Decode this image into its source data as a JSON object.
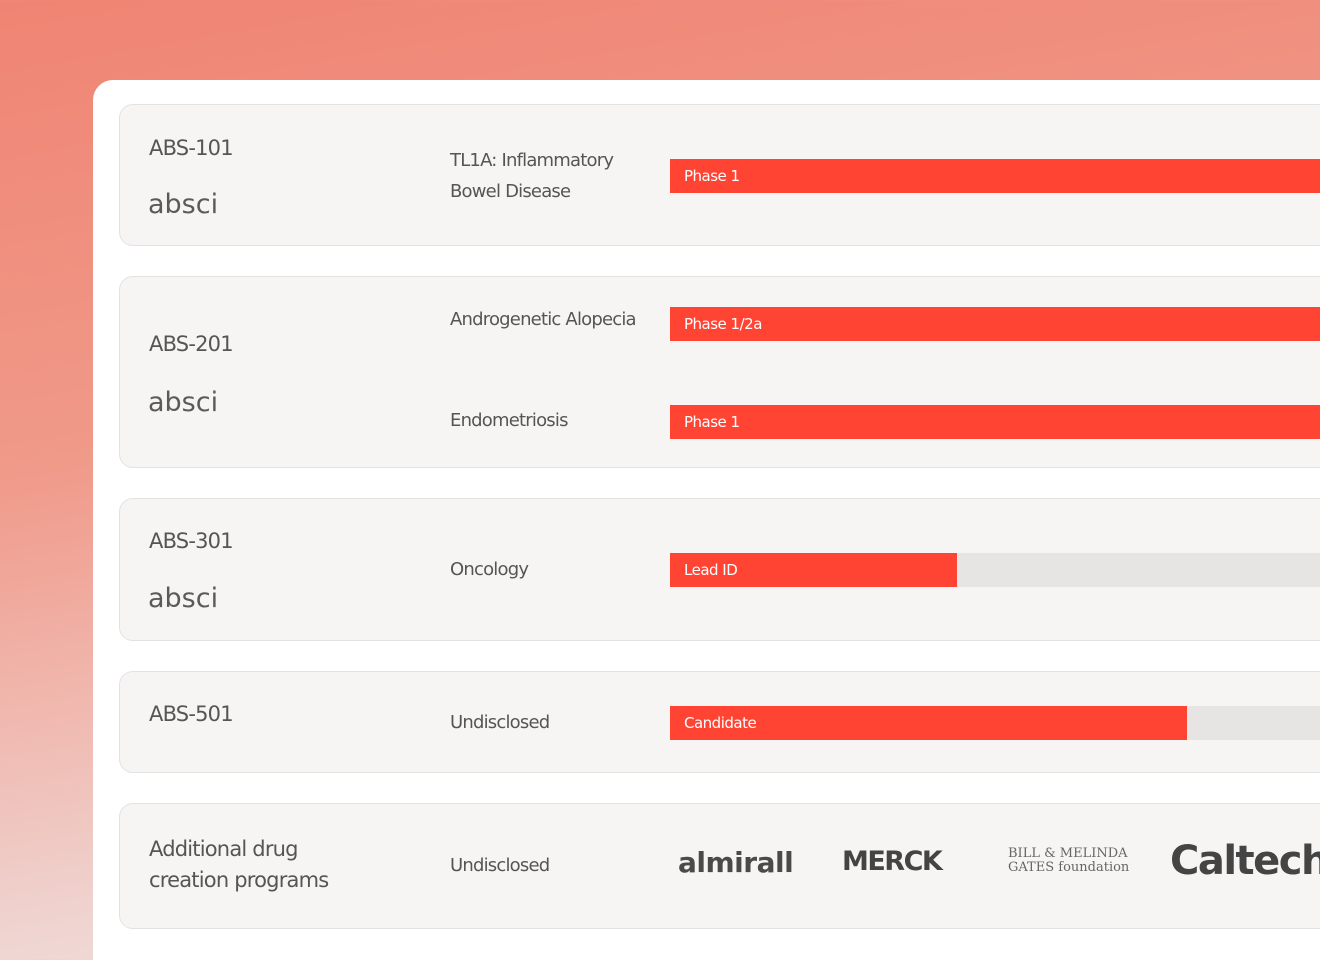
{
  "programs": [
    {
      "name": "ABS-101",
      "company": "absci",
      "indications": [
        {
          "label": "TL1A: Inflammatory Bowel Disease",
          "phase": "Phase 1"
        }
      ]
    },
    {
      "name": "ABS-201",
      "company": "absci",
      "indications": [
        {
          "label": "Androgenetic Alopecia",
          "phase": "Phase 1/2a"
        },
        {
          "label": "Endometriosis",
          "phase": "Phase 1"
        }
      ]
    },
    {
      "name": "ABS-301",
      "company": "absci",
      "indications": [
        {
          "label": "Oncology",
          "phase": "Lead ID"
        }
      ]
    },
    {
      "name": "ABS-501",
      "indications": [
        {
          "label": "Undisclosed",
          "phase": "Candidate"
        }
      ]
    }
  ],
  "additional": {
    "name": "Additional drug creation programs",
    "indication": "Undisclosed",
    "partners": [
      "almirall",
      "MERCK",
      "BILL & MELINDA GATES foundation",
      "Caltech"
    ]
  }
}
